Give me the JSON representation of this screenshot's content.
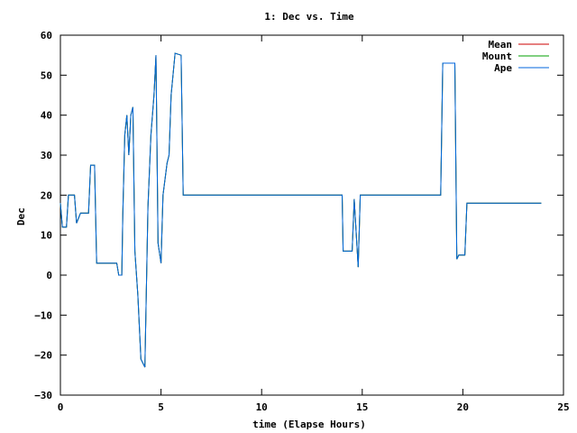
{
  "chart_data": {
    "type": "line",
    "title": "1: Dec vs. Time",
    "xlabel": "time (Elapse Hours)",
    "ylabel": "Dec",
    "xlim": [
      0,
      25
    ],
    "ylim": [
      -30,
      60
    ],
    "xticks": [
      0,
      5,
      10,
      15,
      20,
      25
    ],
    "yticks": [
      -30,
      -20,
      -10,
      0,
      10,
      20,
      30,
      40,
      50,
      60
    ],
    "grid": false,
    "legend_position": "top-right",
    "series": [
      {
        "name": "Mean",
        "color": "#cc0000",
        "points": [
          [
            0.0,
            18
          ],
          [
            0.1,
            12
          ],
          [
            0.3,
            12
          ],
          [
            0.4,
            20
          ],
          [
            0.7,
            20
          ],
          [
            0.8,
            13
          ],
          [
            1.0,
            15.5
          ],
          [
            1.4,
            15.5
          ],
          [
            1.5,
            27.5
          ],
          [
            1.7,
            27.5
          ],
          [
            1.8,
            3
          ],
          [
            2.8,
            3
          ],
          [
            2.9,
            0
          ],
          [
            3.05,
            0
          ],
          [
            3.1,
            15
          ],
          [
            3.2,
            35
          ],
          [
            3.3,
            40
          ],
          [
            3.4,
            30
          ],
          [
            3.5,
            40
          ],
          [
            3.6,
            42
          ],
          [
            3.7,
            6
          ],
          [
            3.85,
            -5
          ],
          [
            4.0,
            -21
          ],
          [
            4.2,
            -23
          ],
          [
            4.35,
            17
          ],
          [
            4.5,
            35
          ],
          [
            4.65,
            45
          ],
          [
            4.75,
            55
          ],
          [
            4.85,
            8
          ],
          [
            5.0,
            3
          ],
          [
            5.1,
            20
          ],
          [
            5.3,
            28
          ],
          [
            5.4,
            30
          ],
          [
            5.5,
            45
          ],
          [
            5.7,
            55.5
          ],
          [
            6.0,
            55
          ],
          [
            6.1,
            20
          ],
          [
            14.0,
            20
          ],
          [
            14.05,
            6
          ],
          [
            14.5,
            6
          ],
          [
            14.6,
            19
          ],
          [
            14.8,
            2
          ],
          [
            14.9,
            20
          ],
          [
            18.9,
            20
          ],
          [
            19.0,
            53
          ],
          [
            19.6,
            53
          ],
          [
            19.7,
            4
          ],
          [
            19.8,
            5
          ],
          [
            20.1,
            5
          ],
          [
            20.2,
            18
          ],
          [
            23.9,
            18
          ]
        ]
      },
      {
        "name": "Mount",
        "color": "#00a000",
        "points": [
          [
            0.0,
            18
          ],
          [
            0.1,
            12
          ],
          [
            0.3,
            12
          ],
          [
            0.4,
            20
          ],
          [
            0.7,
            20
          ],
          [
            0.8,
            13
          ],
          [
            1.0,
            15.5
          ],
          [
            1.4,
            15.5
          ],
          [
            1.5,
            27.5
          ],
          [
            1.7,
            27.5
          ],
          [
            1.8,
            3
          ],
          [
            2.8,
            3
          ],
          [
            2.9,
            0
          ],
          [
            3.05,
            0
          ],
          [
            3.1,
            15
          ],
          [
            3.2,
            35
          ],
          [
            3.3,
            40
          ],
          [
            3.4,
            30
          ],
          [
            3.5,
            40
          ],
          [
            3.6,
            42
          ],
          [
            3.7,
            6
          ],
          [
            3.85,
            -5
          ],
          [
            4.0,
            -21
          ],
          [
            4.2,
            -23
          ],
          [
            4.35,
            17
          ],
          [
            4.5,
            35
          ],
          [
            4.65,
            45
          ],
          [
            4.75,
            55
          ],
          [
            4.85,
            8
          ],
          [
            5.0,
            3
          ],
          [
            5.1,
            20
          ],
          [
            5.3,
            28
          ],
          [
            5.4,
            30
          ],
          [
            5.5,
            45
          ],
          [
            5.7,
            55.5
          ],
          [
            6.0,
            55
          ],
          [
            6.1,
            20
          ],
          [
            14.0,
            20
          ],
          [
            14.05,
            6
          ],
          [
            14.5,
            6
          ],
          [
            14.6,
            19
          ],
          [
            14.8,
            2
          ],
          [
            14.9,
            20
          ],
          [
            18.9,
            20
          ],
          [
            19.0,
            53
          ],
          [
            19.6,
            53
          ],
          [
            19.7,
            4
          ],
          [
            19.8,
            5
          ],
          [
            20.1,
            5
          ],
          [
            20.2,
            18
          ],
          [
            23.9,
            18
          ]
        ]
      },
      {
        "name": "Ape",
        "color": "#0066dd",
        "points": [
          [
            0.0,
            18
          ],
          [
            0.1,
            12
          ],
          [
            0.3,
            12
          ],
          [
            0.4,
            20
          ],
          [
            0.7,
            20
          ],
          [
            0.8,
            13
          ],
          [
            1.0,
            15.5
          ],
          [
            1.4,
            15.5
          ],
          [
            1.5,
            27.5
          ],
          [
            1.7,
            27.5
          ],
          [
            1.8,
            3
          ],
          [
            2.8,
            3
          ],
          [
            2.9,
            0
          ],
          [
            3.05,
            0
          ],
          [
            3.1,
            15
          ],
          [
            3.2,
            35
          ],
          [
            3.3,
            40
          ],
          [
            3.4,
            30
          ],
          [
            3.5,
            40
          ],
          [
            3.6,
            42
          ],
          [
            3.7,
            6
          ],
          [
            3.85,
            -5
          ],
          [
            4.0,
            -21
          ],
          [
            4.2,
            -23
          ],
          [
            4.35,
            17
          ],
          [
            4.5,
            35
          ],
          [
            4.65,
            45
          ],
          [
            4.75,
            55
          ],
          [
            4.85,
            8
          ],
          [
            5.0,
            3
          ],
          [
            5.1,
            20
          ],
          [
            5.3,
            28
          ],
          [
            5.4,
            30
          ],
          [
            5.5,
            45
          ],
          [
            5.7,
            55.5
          ],
          [
            6.0,
            55
          ],
          [
            6.1,
            20
          ],
          [
            14.0,
            20
          ],
          [
            14.05,
            6
          ],
          [
            14.5,
            6
          ],
          [
            14.6,
            19
          ],
          [
            14.8,
            2
          ],
          [
            14.9,
            20
          ],
          [
            18.9,
            20
          ],
          [
            19.0,
            53
          ],
          [
            19.6,
            53
          ],
          [
            19.7,
            4
          ],
          [
            19.8,
            5
          ],
          [
            20.1,
            5
          ],
          [
            20.2,
            18
          ],
          [
            23.9,
            18
          ]
        ]
      }
    ]
  }
}
